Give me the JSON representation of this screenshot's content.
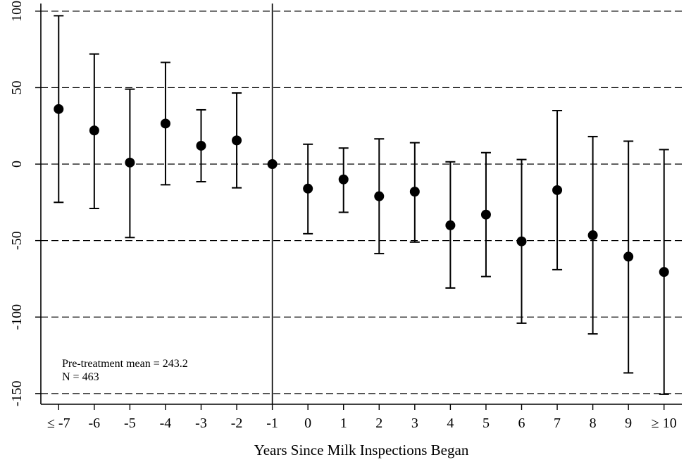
{
  "chart_data": {
    "type": "scatter",
    "subtype": "event-study coefficients with confidence intervals",
    "title": "",
    "xlabel": "Years Since Milk Inspections Began",
    "ylabel": "",
    "categories": [
      "≤ -7",
      "-6",
      "-5",
      "-4",
      "-3",
      "-2",
      "-1",
      "0",
      "1",
      "2",
      "3",
      "4",
      "5",
      "6",
      "7",
      "8",
      "9",
      "≥ 10"
    ],
    "series": [
      {
        "values": [
          36,
          22,
          1,
          26.5,
          12,
          15.5,
          0,
          -16,
          -10,
          -21,
          -18,
          -40,
          -33,
          -50.5,
          -17,
          -46.5,
          -60.5,
          -70.5
        ],
        "ci_low": [
          -25,
          -29,
          -48,
          -13.5,
          -11.5,
          -15.5,
          0,
          -45.5,
          -31.5,
          -58.5,
          -51,
          -81,
          -73.5,
          -104,
          -69,
          -111,
          -136.5,
          -150.5
        ],
        "ci_high": [
          97,
          72,
          49,
          66.5,
          35.5,
          46.5,
          0,
          13,
          10.5,
          16.5,
          14,
          1.5,
          7.5,
          3,
          35,
          18,
          15,
          9.5
        ]
      }
    ],
    "y_ticks": [
      100,
      50,
      0,
      -50,
      -100,
      -150
    ],
    "ylim": [
      -157,
      105
    ],
    "reference_lines": {
      "horizontal_dashed": [
        100,
        50,
        0,
        -50,
        -100,
        -150
      ],
      "vertical_solid_at_category": "-1"
    },
    "grid": false,
    "annotations": [
      "Pre-treatment mean = 243.2",
      "N = 463"
    ]
  }
}
